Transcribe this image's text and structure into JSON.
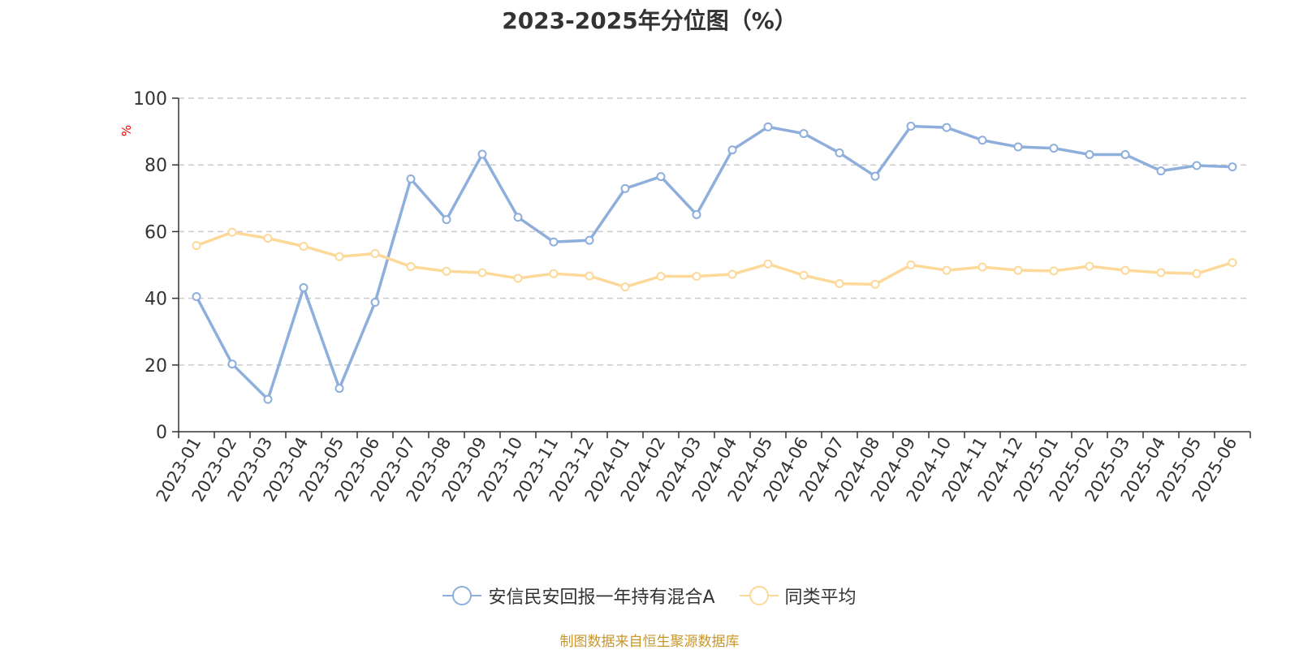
{
  "colors": {
    "series_a": "#8eaedb",
    "series_b": "#fcd998",
    "axis": "#333333",
    "grid": "#cccccc",
    "unit_label": "#e60000",
    "source": "#c9962b"
  },
  "chart_data": {
    "type": "line",
    "title": "2023-2025年分位图（%）",
    "ylabel": "%",
    "ylim": [
      0,
      100
    ],
    "yticks": [
      "0",
      "20",
      "40",
      "60",
      "80",
      "100"
    ],
    "grid": true,
    "legend_position": "bottom",
    "categories": [
      "2023-01",
      "2023-02",
      "2023-03",
      "2023-04",
      "2023-05",
      "2023-06",
      "2023-07",
      "2023-08",
      "2023-09",
      "2023-10",
      "2023-11",
      "2023-12",
      "2024-01",
      "2024-02",
      "2024-03",
      "2024-04",
      "2024-05",
      "2024-06",
      "2024-07",
      "2024-08",
      "2024-09",
      "2024-10",
      "2024-11",
      "2024-12",
      "2025-01",
      "2025-02",
      "2025-03",
      "2025-04",
      "2025-05",
      "2025-06"
    ],
    "series": [
      {
        "name": "安信民安回报一年持有混合A",
        "values": [
          40.5,
          20.3,
          9.7,
          43.2,
          13.0,
          38.8,
          75.8,
          63.6,
          83.2,
          64.3,
          56.9,
          57.4,
          72.9,
          76.5,
          65.1,
          84.5,
          91.4,
          89.4,
          83.6,
          76.6,
          91.6,
          91.2,
          87.4,
          85.4,
          85.0,
          83.1,
          83.1,
          78.2,
          79.8,
          79.4
        ]
      },
      {
        "name": "同类平均",
        "values": [
          55.8,
          59.8,
          58.0,
          55.6,
          52.5,
          53.4,
          49.5,
          48.1,
          47.7,
          46.0,
          47.4,
          46.7,
          43.4,
          46.6,
          46.6,
          47.2,
          50.3,
          46.9,
          44.4,
          44.2,
          50.0,
          48.4,
          49.4,
          48.4,
          48.2,
          49.6,
          48.4,
          47.7,
          47.4,
          50.7
        ]
      }
    ]
  },
  "source_note": "制图数据来自恒生聚源数据库"
}
